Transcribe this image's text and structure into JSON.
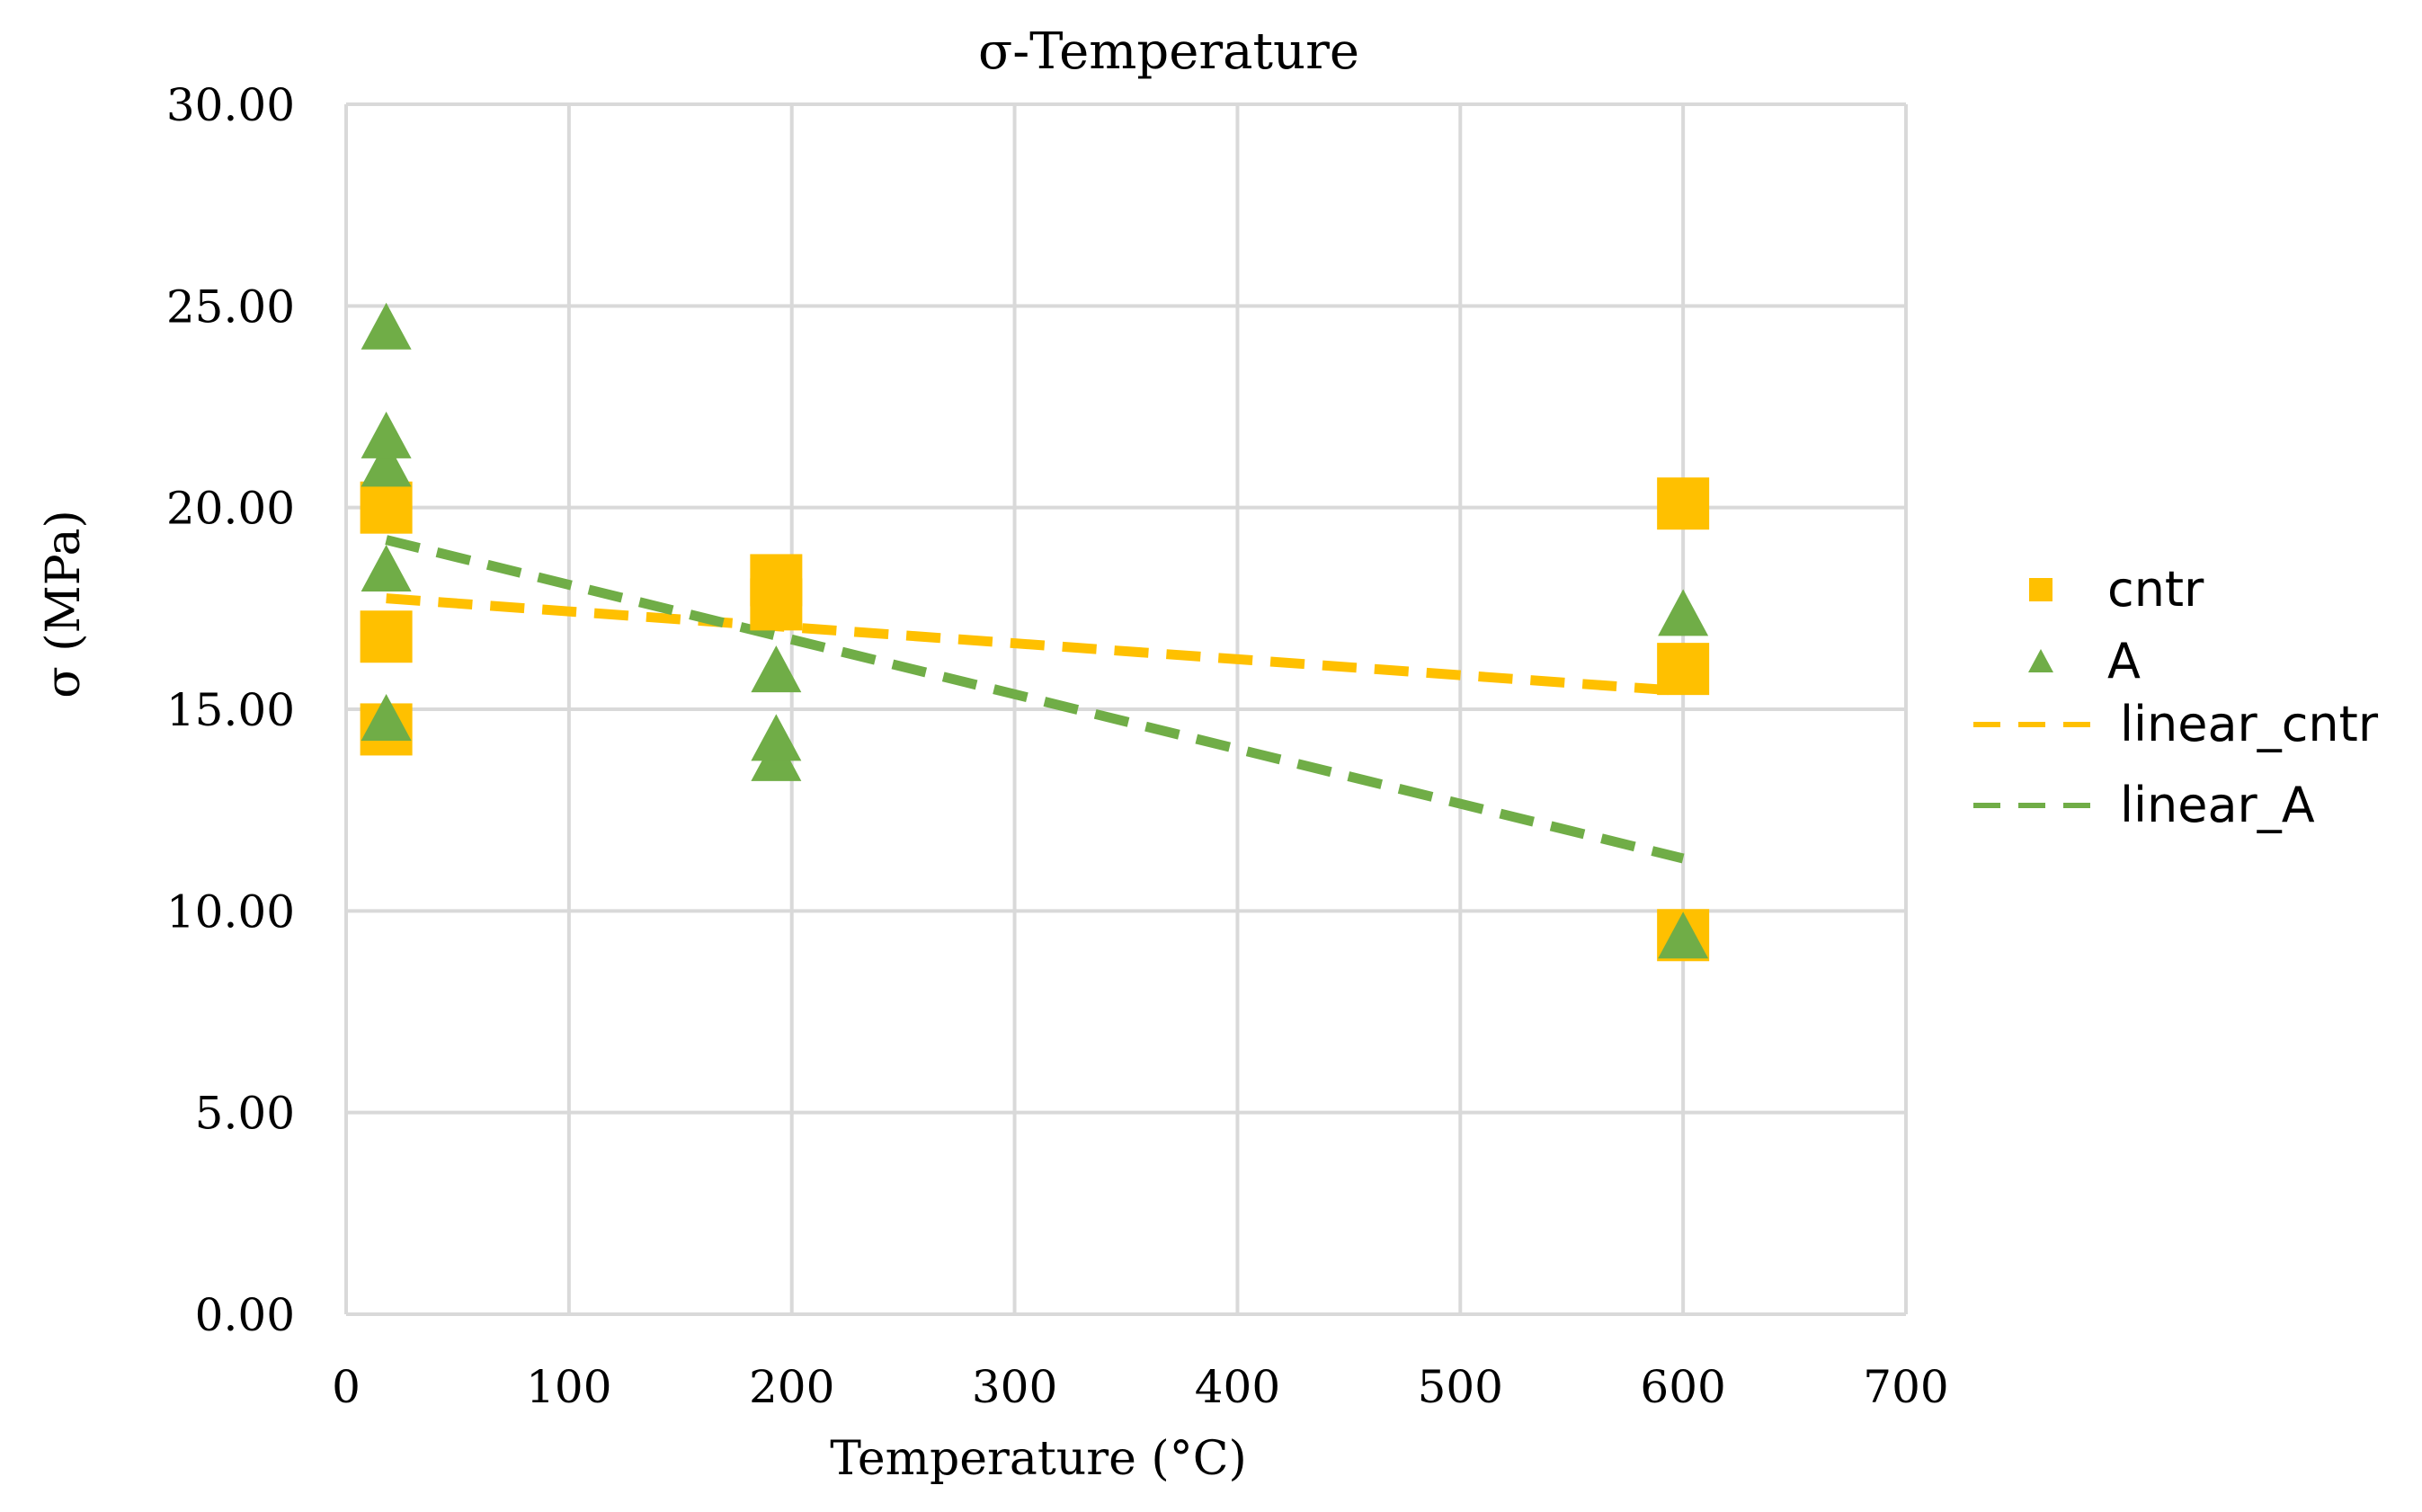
{
  "chart_data": {
    "type": "scatter",
    "title": "σ-Temperature",
    "xlabel": "Temperature (°C)",
    "ylabel": "σ (MPa)",
    "xlim": [
      0,
      700
    ],
    "ylim": [
      0,
      30
    ],
    "xticks": [
      0,
      100,
      200,
      300,
      400,
      500,
      600,
      700
    ],
    "yticks": [
      0,
      5,
      10,
      15,
      20,
      25,
      30
    ],
    "xtick_labels": [
      "0",
      "100",
      "200",
      "300",
      "400",
      "500",
      "600",
      "700"
    ],
    "ytick_labels": [
      "0.00",
      "5.00",
      "10.00",
      "15.00",
      "20.00",
      "25.00",
      "30.00"
    ],
    "grid": true,
    "legend_position": "right",
    "series": [
      {
        "name": "cntr",
        "marker": "square",
        "color": "#FFC000",
        "points": [
          {
            "x": 18,
            "y": 14.5
          },
          {
            "x": 18,
            "y": 16.8
          },
          {
            "x": 18,
            "y": 20.0
          },
          {
            "x": 193,
            "y": 17.6
          },
          {
            "x": 193,
            "y": 18.2
          },
          {
            "x": 600,
            "y": 9.4
          },
          {
            "x": 600,
            "y": 16.0
          },
          {
            "x": 600,
            "y": 20.1
          }
        ]
      },
      {
        "name": "A",
        "marker": "triangle",
        "color": "#70AD47",
        "points": [
          {
            "x": 18,
            "y": 14.8
          },
          {
            "x": 18,
            "y": 18.5
          },
          {
            "x": 18,
            "y": 21.1
          },
          {
            "x": 18,
            "y": 21.8
          },
          {
            "x": 18,
            "y": 24.5
          },
          {
            "x": 193,
            "y": 13.8
          },
          {
            "x": 193,
            "y": 14.3
          },
          {
            "x": 193,
            "y": 16.0
          },
          {
            "x": 600,
            "y": 9.4
          },
          {
            "x": 600,
            "y": 17.4
          }
        ]
      }
    ],
    "trendlines": [
      {
        "name": "linear_cntr",
        "color": "#FFC000",
        "dash": true,
        "x": [
          18,
          600
        ],
        "y": [
          17.75,
          15.45
        ]
      },
      {
        "name": "linear_A",
        "color": "#70AD47",
        "dash": true,
        "x": [
          18,
          600
        ],
        "y": [
          19.2,
          11.3
        ]
      }
    ]
  }
}
